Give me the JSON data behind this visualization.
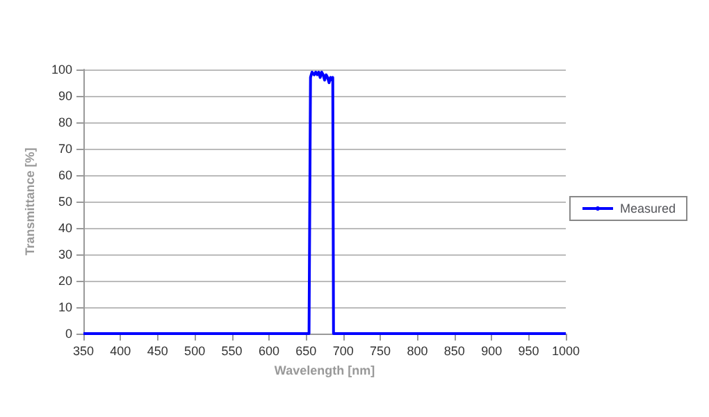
{
  "chart_data": {
    "type": "line",
    "xlabel": "Wavelength [nm]",
    "ylabel": "Transmittance [%]",
    "series": [
      {
        "name": "Measured",
        "color": "#0000ff",
        "x": [
          350,
          500,
          654,
          656,
          658,
          661,
          663,
          665,
          667,
          669,
          671,
          673,
          675,
          677,
          679,
          681,
          683,
          685,
          686,
          687,
          800,
          1000
        ],
        "values": [
          0,
          0,
          0,
          97,
          99,
          98,
          99,
          98,
          99,
          97,
          99,
          98,
          96,
          98,
          97,
          95,
          97,
          96,
          97,
          0,
          0,
          0
        ]
      }
    ],
    "xlim": [
      350,
      1000
    ],
    "xticks": [
      350,
      400,
      450,
      500,
      550,
      600,
      650,
      700,
      750,
      800,
      850,
      900,
      950,
      1000
    ],
    "ylim": [
      0,
      100
    ],
    "yticks": [
      0,
      10,
      20,
      30,
      40,
      50,
      60,
      70,
      80,
      90,
      100
    ],
    "grid": "y",
    "legend": "right",
    "marker": "none",
    "line_style": "solid"
  }
}
